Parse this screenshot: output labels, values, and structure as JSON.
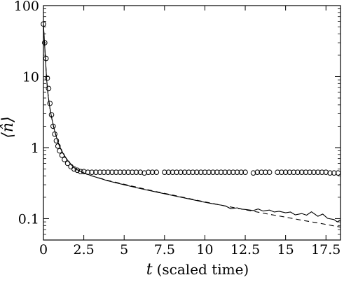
{
  "chart_data": {
    "type": "line",
    "y_scale": "log",
    "xlim": [
      0,
      18.4
    ],
    "ylim": [
      0.05,
      100
    ],
    "x_ticks": [
      0,
      2.5,
      5,
      7.5,
      10,
      12.5,
      15,
      17.5
    ],
    "x_tick_labels": [
      "0",
      "2.5",
      "5",
      "7.5",
      "10",
      "12.5",
      "15",
      "17.5"
    ],
    "y_ticks": [
      0.1,
      1,
      10,
      100
    ],
    "y_tick_labels": [
      "0.1",
      "1",
      "10",
      "100"
    ],
    "xlabel_var": "t",
    "xlabel_text": "(scaled time)",
    "ylabel": "⟨n̂⟩",
    "grid": false,
    "series": [
      {
        "style": "circle-markers",
        "color": "#000000",
        "x": [
          0.0,
          0.08,
          0.16,
          0.24,
          0.32,
          0.4,
          0.5,
          0.6,
          0.7,
          0.8,
          0.9,
          1.0,
          1.15,
          1.3,
          1.5,
          1.7,
          1.9,
          2.1,
          2.3,
          2.5,
          2.75,
          3.0,
          3.25,
          3.5,
          3.75,
          4.0,
          4.25,
          4.5,
          4.75,
          5.0,
          5.25,
          5.5,
          5.75,
          6.0,
          6.25,
          6.5,
          6.75,
          7.0,
          7.5,
          7.75,
          8.0,
          8.25,
          8.5,
          8.75,
          9.0,
          9.25,
          9.5,
          9.75,
          10.0,
          10.25,
          10.5,
          10.75,
          11.0,
          11.25,
          11.5,
          11.75,
          12.0,
          12.25,
          12.5,
          13.0,
          13.25,
          13.5,
          13.75,
          14.0,
          14.5,
          14.75,
          15.0,
          15.25,
          15.5,
          15.75,
          16.0,
          16.25,
          16.5,
          16.75,
          17.0,
          17.25,
          17.5,
          17.75,
          18.0,
          18.25
        ],
        "y": [
          55,
          30,
          18,
          9.5,
          6.8,
          4.2,
          2.9,
          2.0,
          1.55,
          1.25,
          1.05,
          0.9,
          0.78,
          0.68,
          0.6,
          0.54,
          0.5,
          0.48,
          0.46,
          0.46,
          0.45,
          0.45,
          0.45,
          0.45,
          0.45,
          0.45,
          0.45,
          0.45,
          0.45,
          0.45,
          0.45,
          0.45,
          0.45,
          0.45,
          0.44,
          0.45,
          0.45,
          0.45,
          0.45,
          0.45,
          0.45,
          0.45,
          0.45,
          0.45,
          0.45,
          0.45,
          0.45,
          0.45,
          0.45,
          0.45,
          0.45,
          0.45,
          0.45,
          0.45,
          0.45,
          0.45,
          0.45,
          0.45,
          0.45,
          0.44,
          0.45,
          0.45,
          0.45,
          0.45,
          0.45,
          0.45,
          0.45,
          0.45,
          0.45,
          0.45,
          0.45,
          0.45,
          0.45,
          0.45,
          0.45,
          0.45,
          0.45,
          0.44,
          0.44,
          0.44
        ]
      },
      {
        "style": "solid",
        "color": "#000000",
        "x": [
          0.0,
          0.1,
          0.2,
          0.3,
          0.4,
          0.5,
          0.6,
          0.7,
          0.8,
          0.9,
          1.0,
          1.2,
          1.4,
          1.6,
          1.8,
          2.0,
          2.5,
          3.0,
          4.0,
          5.0,
          6.0,
          7.0,
          8.0,
          9.0,
          10.0,
          10.5,
          11.0,
          11.3,
          11.6,
          12.0,
          12.3,
          12.6,
          13.0,
          13.3,
          13.6,
          14.0,
          14.3,
          14.6,
          15.0,
          15.3,
          15.6,
          16.0,
          16.3,
          16.6,
          17.0,
          17.3,
          17.6,
          18.0,
          18.2,
          18.4
        ],
        "y": [
          55,
          22,
          9,
          5.2,
          3.6,
          2.7,
          2.1,
          1.7,
          1.42,
          1.2,
          1.04,
          0.84,
          0.71,
          0.62,
          0.55,
          0.5,
          0.44,
          0.4,
          0.34,
          0.3,
          0.265,
          0.237,
          0.212,
          0.19,
          0.17,
          0.162,
          0.155,
          0.15,
          0.138,
          0.142,
          0.136,
          0.134,
          0.13,
          0.137,
          0.128,
          0.132,
          0.124,
          0.127,
          0.121,
          0.124,
          0.113,
          0.118,
          0.112,
          0.125,
          0.108,
          0.116,
          0.101,
          0.097,
          0.09,
          0.096
        ]
      },
      {
        "style": "dashed",
        "color": "#000000",
        "x": [
          0.0,
          0.1,
          0.2,
          0.3,
          0.4,
          0.5,
          0.6,
          0.7,
          0.8,
          0.9,
          1.0,
          1.2,
          1.4,
          1.6,
          1.8,
          2.0,
          2.5,
          3.0,
          4.0,
          5.0,
          6.0,
          7.0,
          8.0,
          9.0,
          10.0,
          11.0,
          12.0,
          13.0,
          14.0,
          15.0,
          16.0,
          17.0,
          18.0,
          18.4
        ],
        "y": [
          55,
          22,
          9,
          5.2,
          3.6,
          2.7,
          2.1,
          1.7,
          1.42,
          1.2,
          1.04,
          0.84,
          0.71,
          0.62,
          0.55,
          0.5,
          0.44,
          0.4,
          0.345,
          0.305,
          0.27,
          0.24,
          0.215,
          0.192,
          0.172,
          0.155,
          0.14,
          0.127,
          0.115,
          0.105,
          0.095,
          0.087,
          0.079,
          0.076
        ]
      }
    ]
  }
}
